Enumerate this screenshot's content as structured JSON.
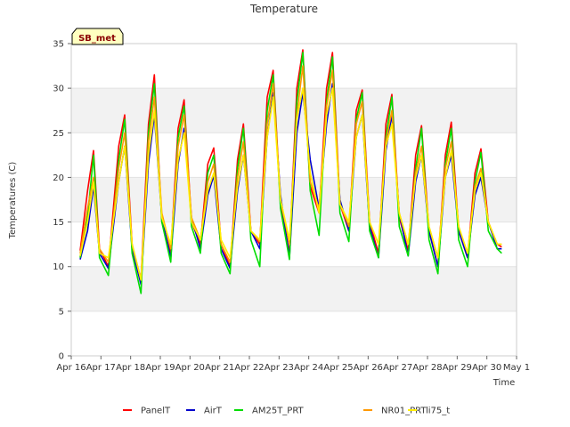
{
  "chart_data": {
    "type": "line",
    "title": "Temperature",
    "site_label": "SB_met",
    "xlabel": "Time",
    "ylabel": "Temperatures (C)",
    "ylim": [
      0,
      35
    ],
    "yticks": [
      0,
      5,
      10,
      15,
      20,
      25,
      30,
      35
    ],
    "xlim": [
      0,
      15
    ],
    "x_tick_values": [
      0,
      1,
      2,
      3,
      4,
      5,
      6,
      7,
      8,
      9,
      10,
      11,
      12,
      13,
      14,
      15
    ],
    "x_tick_labels": [
      "Apr 16",
      "Apr 17",
      "Apr 18",
      "Apr 19",
      "Apr 20",
      "Apr 21",
      "Apr 22",
      "Apr 23",
      "Apr 24",
      "Apr 25",
      "Apr 26",
      "Apr 27",
      "Apr 28",
      "Apr 29",
      "Apr 30",
      "May 1"
    ],
    "x_values_note_unit": "days after Apr 16",
    "x": [
      0.3,
      0.55,
      0.75,
      0.95,
      1.25,
      1.6,
      1.8,
      2.05,
      2.35,
      2.6,
      2.8,
      3.05,
      3.35,
      3.6,
      3.8,
      4.05,
      4.35,
      4.6,
      4.8,
      5.05,
      5.35,
      5.6,
      5.8,
      6.05,
      6.35,
      6.6,
      6.8,
      7.05,
      7.35,
      7.6,
      7.8,
      8.05,
      8.35,
      8.6,
      8.8,
      9.05,
      9.35,
      9.6,
      9.8,
      10.05,
      10.35,
      10.6,
      10.8,
      11.05,
      11.35,
      11.6,
      11.8,
      12.05,
      12.35,
      12.6,
      12.8,
      13.05,
      13.35,
      13.6,
      13.8,
      14.05,
      14.35,
      14.5
    ],
    "series": [
      {
        "name": "PanelT",
        "color": "#ff0000",
        "values": [
          11.8,
          18.5,
          23.0,
          12.0,
          10.0,
          23.5,
          27.0,
          12.5,
          8.5,
          26.0,
          31.5,
          15.0,
          11.5,
          25.5,
          28.7,
          15.0,
          12.5,
          21.5,
          23.3,
          12.5,
          10.0,
          22.0,
          26.0,
          14.0,
          12.5,
          29.0,
          32.0,
          17.0,
          11.5,
          30.0,
          34.3,
          19.0,
          16.0,
          30.0,
          34.0,
          17.0,
          14.0,
          27.5,
          29.8,
          15.0,
          11.5,
          26.0,
          29.3,
          15.5,
          11.8,
          22.5,
          25.8,
          14.0,
          10.0,
          22.5,
          26.2,
          14.0,
          11.0,
          20.5,
          23.2,
          15.0,
          12.5,
          12.2
        ]
      },
      {
        "name": "AirT",
        "color": "#0000cc",
        "values": [
          10.8,
          14.0,
          19.0,
          11.5,
          9.8,
          19.5,
          23.5,
          12.0,
          8.0,
          21.5,
          27.0,
          15.5,
          11.0,
          21.5,
          25.5,
          15.5,
          12.0,
          18.0,
          20.2,
          12.0,
          9.8,
          18.5,
          22.5,
          14.0,
          12.0,
          24.5,
          29.5,
          18.0,
          11.0,
          25.0,
          29.5,
          22.0,
          16.5,
          26.0,
          30.5,
          17.5,
          14.0,
          24.5,
          27.0,
          14.5,
          11.0,
          23.0,
          27.0,
          16.0,
          11.2,
          19.5,
          22.5,
          14.0,
          10.0,
          20.0,
          22.5,
          14.0,
          11.0,
          18.0,
          20.0,
          15.0,
          12.0,
          12.0
        ]
      },
      {
        "name": "AM25T_PRT",
        "color": "#00dd00",
        "values": [
          11.0,
          15.5,
          22.5,
          11.0,
          9.0,
          22.0,
          26.5,
          11.5,
          7.0,
          25.0,
          30.5,
          15.0,
          10.5,
          24.5,
          28.0,
          14.5,
          11.5,
          20.5,
          22.5,
          11.5,
          9.2,
          21.0,
          25.5,
          13.0,
          10.0,
          27.5,
          31.5,
          16.5,
          10.8,
          28.5,
          34.0,
          18.5,
          13.5,
          28.5,
          33.5,
          16.0,
          12.8,
          26.5,
          29.5,
          14.0,
          11.0,
          24.5,
          29.0,
          14.5,
          11.2,
          21.0,
          25.5,
          13.0,
          9.2,
          21.5,
          25.5,
          13.0,
          10.0,
          19.5,
          22.8,
          14.0,
          12.0,
          11.5
        ]
      },
      {
        "name": "NR01_PRT",
        "color": "#ff9900",
        "values": [
          11.5,
          16.5,
          20.0,
          12.0,
          10.5,
          21.0,
          25.0,
          12.5,
          8.5,
          24.0,
          29.0,
          16.0,
          12.0,
          23.5,
          27.0,
          15.5,
          13.0,
          19.5,
          21.5,
          12.5,
          10.5,
          20.0,
          24.0,
          14.0,
          12.8,
          26.0,
          30.5,
          17.5,
          12.5,
          27.0,
          32.5,
          19.5,
          16.5,
          28.0,
          32.0,
          17.0,
          14.5,
          26.0,
          28.5,
          15.0,
          12.5,
          24.0,
          27.5,
          16.0,
          12.5,
          20.5,
          23.5,
          14.5,
          11.0,
          21.0,
          24.0,
          14.5,
          11.5,
          19.0,
          21.0,
          15.0,
          12.5,
          12.5
        ]
      },
      {
        "name": "li75_t",
        "color": "#ffee00",
        "values": [
          11.2,
          15.0,
          19.5,
          11.5,
          11.0,
          19.5,
          23.5,
          12.5,
          8.5,
          22.5,
          27.5,
          15.5,
          12.5,
          22.0,
          25.0,
          15.0,
          13.0,
          18.5,
          20.5,
          13.0,
          11.0,
          19.0,
          22.5,
          14.0,
          13.0,
          24.5,
          29.0,
          17.5,
          13.0,
          26.5,
          30.0,
          20.5,
          16.0,
          27.0,
          30.0,
          17.0,
          15.0,
          24.5,
          27.0,
          15.0,
          12.5,
          23.5,
          26.0,
          16.0,
          12.5,
          20.0,
          22.5,
          14.5,
          11.0,
          20.0,
          23.0,
          14.5,
          11.5,
          18.5,
          20.5,
          15.0,
          12.5,
          12.5
        ]
      }
    ],
    "grid": true,
    "background_bands": true,
    "legend_position": "bottom"
  }
}
